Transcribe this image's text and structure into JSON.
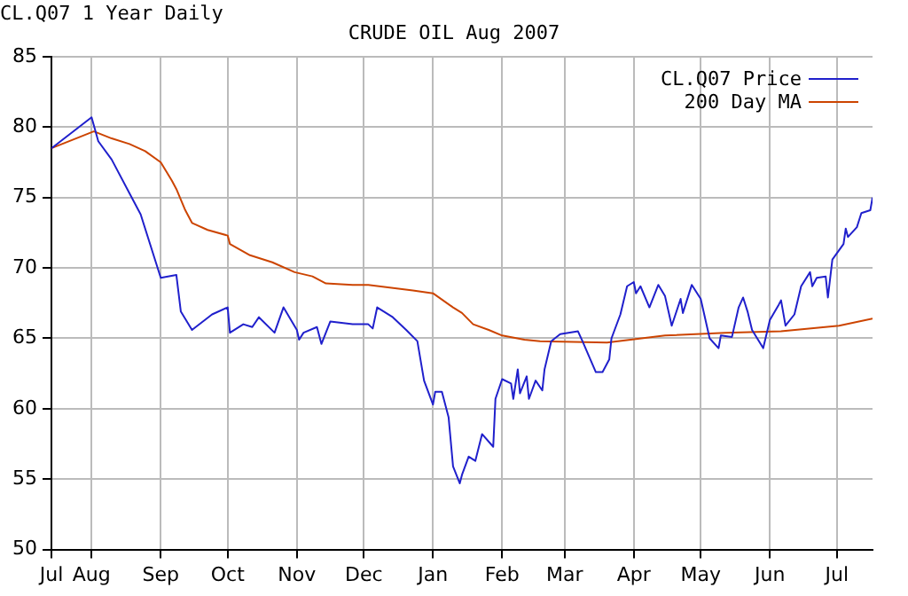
{
  "chart_data": {
    "type": "line",
    "title": "CRUDE OIL Aug 2007",
    "subtitle": "CL.Q07 1 Year Daily",
    "xlim": [
      "2006-07-14",
      "2007-07-17"
    ],
    "xticks": [
      {
        "value": "2006-07-14",
        "label": "Jul"
      },
      {
        "value": "2006-08-01",
        "label": "Aug"
      },
      {
        "value": "2006-09-01",
        "label": "Sep"
      },
      {
        "value": "2006-10-01",
        "label": "Oct"
      },
      {
        "value": "2006-11-01",
        "label": "Nov"
      },
      {
        "value": "2006-12-01",
        "label": "Dec"
      },
      {
        "value": "2007-01-01",
        "label": "Jan"
      },
      {
        "value": "2007-02-01",
        "label": "Feb"
      },
      {
        "value": "2007-03-01",
        "label": "Mar"
      },
      {
        "value": "2007-04-01",
        "label": "Apr"
      },
      {
        "value": "2007-05-01",
        "label": "May"
      },
      {
        "value": "2007-06-01",
        "label": "Jun"
      },
      {
        "value": "2007-07-01",
        "label": "Jul"
      }
    ],
    "ylim": [
      50,
      85
    ],
    "yticks": [
      50,
      55,
      60,
      65,
      70,
      75,
      80,
      85
    ],
    "grid": true,
    "legend": "top right",
    "marker": "none",
    "line_style": "solid",
    "series": [
      {
        "name": "CL.Q07 Price",
        "color": "#2020cc",
        "x": [
          "2006-07-14",
          "2006-08-01",
          "2006-08-04",
          "2006-08-10",
          "2006-08-18",
          "2006-08-23",
          "2006-09-01",
          "2006-09-08",
          "2006-09-10",
          "2006-09-15",
          "2006-09-24",
          "2006-10-01",
          "2006-10-02",
          "2006-10-08",
          "2006-10-12",
          "2006-10-15",
          "2006-10-22",
          "2006-10-26",
          "2006-11-01",
          "2006-11-02",
          "2006-11-04",
          "2006-11-10",
          "2006-11-12",
          "2006-11-16",
          "2006-11-26",
          "2006-12-03",
          "2006-12-05",
          "2006-12-07",
          "2006-12-14",
          "2006-12-20",
          "2006-12-25",
          "2006-12-28",
          "2007-01-01",
          "2007-01-02",
          "2007-01-05",
          "2007-01-08",
          "2007-01-10",
          "2007-01-13",
          "2007-01-14",
          "2007-01-17",
          "2007-01-20",
          "2007-01-23",
          "2007-01-28",
          "2007-01-29",
          "2007-02-01",
          "2007-02-05",
          "2007-02-06",
          "2007-02-08",
          "2007-02-09",
          "2007-02-12",
          "2007-02-13",
          "2007-02-16",
          "2007-02-19",
          "2007-02-20",
          "2007-02-23",
          "2007-02-27",
          "2007-03-07",
          "2007-03-09",
          "2007-03-15",
          "2007-03-18",
          "2007-03-21",
          "2007-03-22",
          "2007-03-26",
          "2007-03-29",
          "2007-04-01",
          "2007-04-02",
          "2007-04-04",
          "2007-04-08",
          "2007-04-12",
          "2007-04-15",
          "2007-04-18",
          "2007-04-22",
          "2007-04-23",
          "2007-04-27",
          "2007-05-01",
          "2007-05-05",
          "2007-05-09",
          "2007-05-10",
          "2007-05-15",
          "2007-05-18",
          "2007-05-20",
          "2007-05-22",
          "2007-05-24",
          "2007-05-29",
          "2007-06-01",
          "2007-06-05",
          "2007-06-06",
          "2007-06-08",
          "2007-06-12",
          "2007-06-15",
          "2007-06-19",
          "2007-06-20",
          "2007-06-22",
          "2007-06-26",
          "2007-06-27",
          "2007-06-29",
          "2007-07-04",
          "2007-07-05",
          "2007-07-06",
          "2007-07-10",
          "2007-07-12",
          "2007-07-16",
          "2007-07-17"
        ],
        "values": [
          78.5,
          80.7,
          79.0,
          77.7,
          75.3,
          73.8,
          69.3,
          69.5,
          66.9,
          65.6,
          66.7,
          67.2,
          65.4,
          66.0,
          65.8,
          66.5,
          65.4,
          67.2,
          65.6,
          64.9,
          65.4,
          65.8,
          64.6,
          66.2,
          66.0,
          66.0,
          65.7,
          67.2,
          66.5,
          65.6,
          64.8,
          62.0,
          60.3,
          61.2,
          61.2,
          59.4,
          55.9,
          54.7,
          55.3,
          56.6,
          56.3,
          58.2,
          57.3,
          60.7,
          62.1,
          61.8,
          60.7,
          62.8,
          61.1,
          62.3,
          60.7,
          62.0,
          61.3,
          62.8,
          64.8,
          65.3,
          65.5,
          64.8,
          62.6,
          62.6,
          63.5,
          65.0,
          66.7,
          68.7,
          69.0,
          68.2,
          68.7,
          67.2,
          68.8,
          68.0,
          65.9,
          67.8,
          66.8,
          68.8,
          67.8,
          65.0,
          64.3,
          65.2,
          65.1,
          67.2,
          67.9,
          66.9,
          65.6,
          64.3,
          66.3,
          67.4,
          67.7,
          65.9,
          66.7,
          68.7,
          69.7,
          68.7,
          69.3,
          69.4,
          67.9,
          70.6,
          71.7,
          72.8,
          72.2,
          72.9,
          73.9,
          74.1,
          75.0
        ]
      },
      {
        "name": "200 Day MA",
        "color": "#cc4400",
        "x": [
          "2006-07-14",
          "2006-08-02",
          "2006-08-10",
          "2006-08-18",
          "2006-08-25",
          "2006-09-01",
          "2006-09-06",
          "2006-09-08",
          "2006-09-12",
          "2006-09-15",
          "2006-09-22",
          "2006-10-01",
          "2006-10-02",
          "2006-10-11",
          "2006-10-21",
          "2006-10-31",
          "2006-11-08",
          "2006-11-14",
          "2006-11-26",
          "2006-12-03",
          "2006-12-23",
          "2007-01-01",
          "2007-01-10",
          "2007-01-14",
          "2007-01-19",
          "2007-01-26",
          "2007-02-01",
          "2007-02-11",
          "2007-02-18",
          "2007-03-20",
          "2007-04-15",
          "2007-05-12",
          "2007-06-06",
          "2007-07-02",
          "2007-07-17"
        ],
        "values": [
          78.5,
          79.7,
          79.2,
          78.8,
          78.3,
          77.5,
          76.2,
          75.6,
          74.1,
          73.2,
          72.7,
          72.3,
          71.7,
          70.9,
          70.4,
          69.7,
          69.4,
          68.9,
          68.8,
          68.8,
          68.4,
          68.2,
          67.2,
          66.8,
          66.0,
          65.6,
          65.2,
          64.9,
          64.8,
          64.7,
          65.2,
          65.4,
          65.5,
          65.9,
          66.4
        ]
      }
    ]
  }
}
